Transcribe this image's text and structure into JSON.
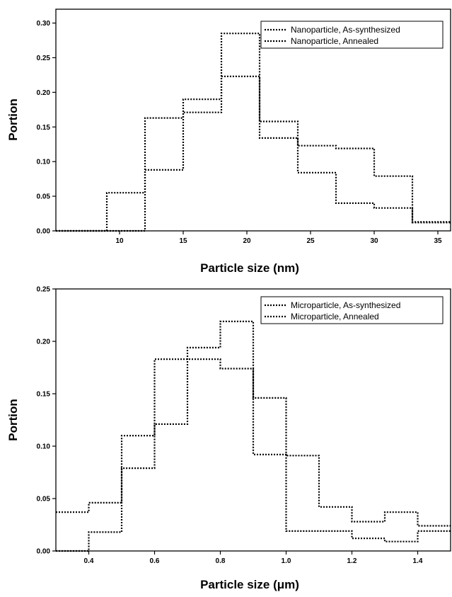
{
  "chart_data": [
    {
      "type": "line",
      "step": true,
      "ylabel": "Portion",
      "xlabel": "Particle size (nm)",
      "xlim": [
        5,
        36
      ],
      "ylim": [
        0,
        0.32
      ],
      "xticks": [
        10,
        15,
        20,
        25,
        30,
        35
      ],
      "yticks": [
        0.0,
        0.05,
        0.1,
        0.15,
        0.2,
        0.25,
        0.3
      ],
      "ytick_labels": [
        "0.00",
        "0.05",
        "0.10",
        "0.15",
        "0.20",
        "0.25",
        "0.30"
      ],
      "xtick_labels": [
        "10",
        "15",
        "20",
        "25",
        "30",
        "35"
      ],
      "legend_position": "top-right",
      "series": [
        {
          "name": "Nanoparticle, As-synthesized",
          "bin_edges": [
            5,
            9,
            12,
            15,
            18,
            21,
            24,
            27,
            30,
            33,
            36
          ],
          "values": [
            0.0,
            0.055,
            0.088,
            0.171,
            0.223,
            0.134,
            0.084,
            0.04,
            0.033,
            0.012
          ]
        },
        {
          "name": "Nanoparticle, Annealed",
          "bin_edges": [
            5,
            9,
            12,
            15,
            18,
            21,
            24,
            27,
            30,
            33,
            36
          ],
          "values": [
            0.0,
            0.0,
            0.163,
            0.19,
            0.285,
            0.158,
            0.123,
            0.119,
            0.079,
            0.013
          ]
        }
      ]
    },
    {
      "type": "line",
      "step": true,
      "ylabel": "Portion",
      "xlabel": "Particle size (μm)",
      "xlim": [
        0.3,
        1.5
      ],
      "ylim": [
        0,
        0.25
      ],
      "xticks": [
        0.4,
        0.6,
        0.8,
        1.0,
        1.2,
        1.4
      ],
      "yticks": [
        0.0,
        0.05,
        0.1,
        0.15,
        0.2,
        0.25
      ],
      "ytick_labels": [
        "0.00",
        "0.05",
        "0.10",
        "0.15",
        "0.20",
        "0.25"
      ],
      "xtick_labels": [
        "0.4",
        "0.6",
        "0.8",
        "1.0",
        "1.2",
        "1.4"
      ],
      "legend_position": "top-right",
      "series": [
        {
          "name": "Microparticle, As-synthesized",
          "bin_edges": [
            0.3,
            0.4,
            0.5,
            0.6,
            0.7,
            0.8,
            0.9,
            1.0,
            1.1,
            1.2,
            1.3,
            1.4,
            1.5
          ],
          "values": [
            0.037,
            0.046,
            0.11,
            0.183,
            0.183,
            0.174,
            0.146,
            0.019,
            0.019,
            0.012,
            0.009,
            0.019
          ]
        },
        {
          "name": "Microparticle, Annealed",
          "bin_edges": [
            0.3,
            0.4,
            0.5,
            0.6,
            0.7,
            0.8,
            0.9,
            1.0,
            1.1,
            1.2,
            1.3,
            1.4,
            1.5
          ],
          "values": [
            0.0,
            0.018,
            0.079,
            0.121,
            0.194,
            0.219,
            0.092,
            0.091,
            0.042,
            0.028,
            0.037,
            0.024
          ]
        }
      ]
    }
  ]
}
